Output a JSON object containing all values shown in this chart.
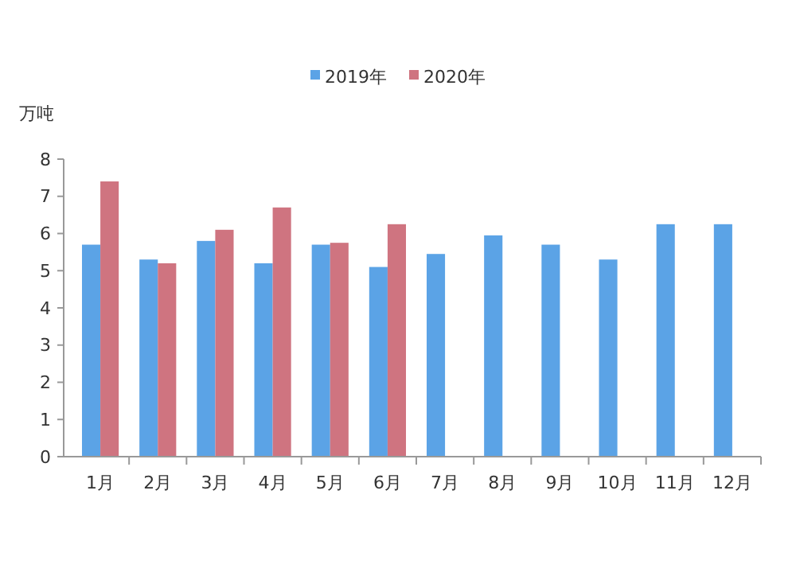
{
  "chart_data": {
    "type": "bar",
    "ylabel": "万吨",
    "categories": [
      "1月",
      "2月",
      "3月",
      "4月",
      "5月",
      "6月",
      "7月",
      "8月",
      "9月",
      "10月",
      "11月",
      "12月"
    ],
    "series": [
      {
        "name": "2019年",
        "color": "#5ba3e6",
        "values": [
          5.7,
          5.3,
          5.8,
          5.2,
          5.7,
          5.1,
          5.45,
          5.95,
          5.7,
          5.3,
          6.25,
          6.25
        ]
      },
      {
        "name": "2020年",
        "color": "#cf7480",
        "values": [
          7.4,
          5.2,
          6.1,
          6.7,
          5.75,
          6.25,
          null,
          null,
          null,
          null,
          null,
          null
        ]
      }
    ],
    "ylim": [
      0,
      8
    ],
    "yticks": [
      0,
      1,
      2,
      3,
      4,
      5,
      6,
      7,
      8
    ],
    "grid": false,
    "legend": "top"
  }
}
